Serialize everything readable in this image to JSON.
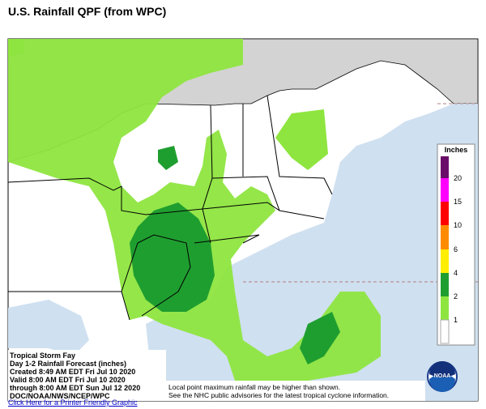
{
  "header": {
    "title": "U.S. Rainfall QPF (from WPC)"
  },
  "legend": {
    "title": "Inches",
    "levels": [
      20,
      15,
      10,
      6,
      4,
      2,
      1
    ]
  },
  "info": {
    "lines": [
      "Tropical Storm Fay",
      "Day 1-2 Rainfall Forecast (inches)",
      "Created 8:49 AM EDT Fri Jul 10 2020",
      "Valid 8:00 AM EDT Fri Jul 10 2020",
      "through 8:00 AM EDT Sun Jul 12 2020",
      "DOC/NOAA/NWS/NCEP/WPC"
    ]
  },
  "notes": [
    "Local point maximum rainfall may be higher than shown.",
    "See the NHC public advisories for the latest tropical cyclone information."
  ],
  "logo": "NOAA",
  "link": "Click Here for a Printer Friendly Graphic"
}
